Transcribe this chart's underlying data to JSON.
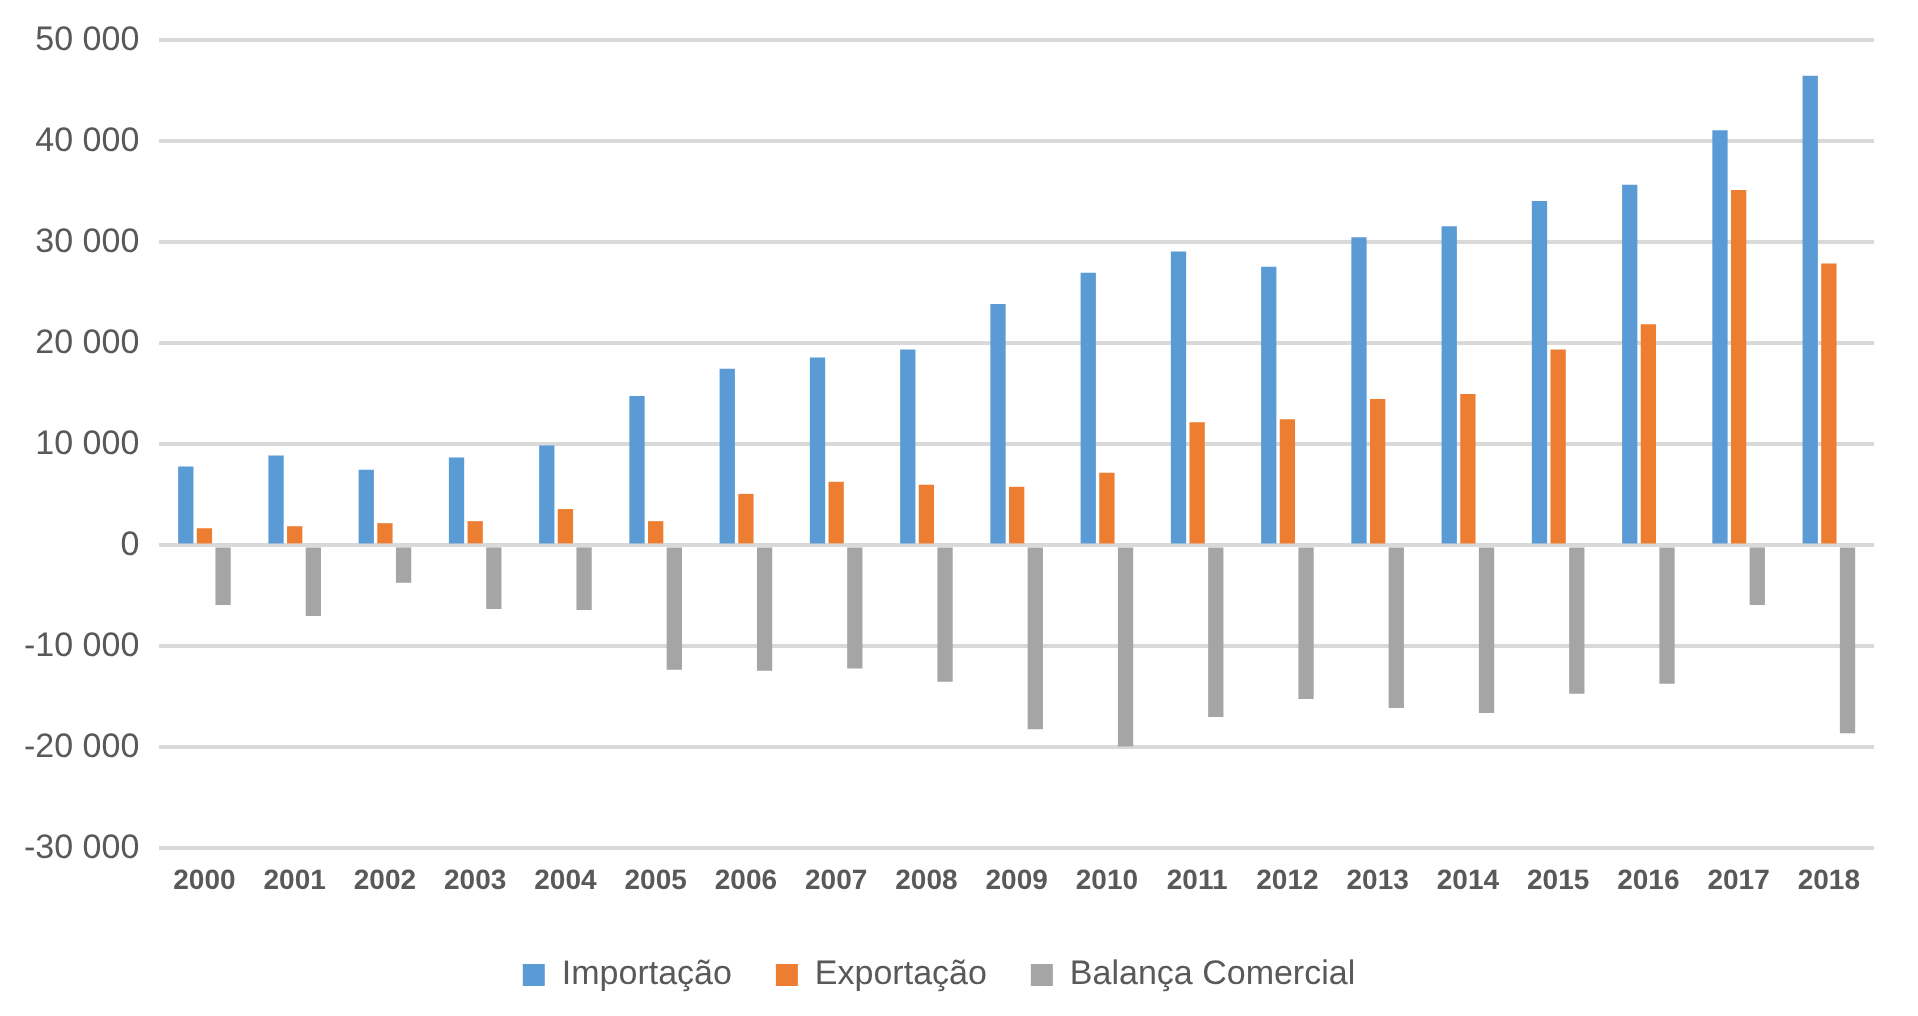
{
  "chart_data": {
    "type": "bar",
    "categories": [
      "2000",
      "2001",
      "2002",
      "2003",
      "2004",
      "2005",
      "2006",
      "2007",
      "2008",
      "2009",
      "2010",
      "2011",
      "2012",
      "2013",
      "2014",
      "2015",
      "2016",
      "2017",
      "2018"
    ],
    "series": [
      {
        "name": "Importação",
        "color": "#5b9bd5",
        "values": [
          7800,
          8900,
          7500,
          8700,
          9900,
          14800,
          17500,
          18600,
          19400,
          23900,
          27000,
          29100,
          27600,
          30500,
          31600,
          34100,
          35700,
          41100,
          46500
        ]
      },
      {
        "name": "Exportação",
        "color": "#ed7d31",
        "values": [
          1700,
          1900,
          2200,
          2400,
          3600,
          2400,
          5100,
          6300,
          6000,
          5800,
          7200,
          12200,
          12500,
          14500,
          15000,
          19400,
          21900,
          35200,
          27900
        ]
      },
      {
        "name": "Balança Comercial",
        "color": "#a5a5a5",
        "values": [
          -5900,
          -7000,
          -3700,
          -6300,
          -6400,
          -12300,
          -12400,
          -12200,
          -13500,
          -18200,
          -19900,
          -17000,
          -15200,
          -16100,
          -16600,
          -14700,
          -13700,
          -5900,
          -18600
        ]
      }
    ],
    "ylim": [
      -30000,
      50000
    ],
    "yticks": [
      {
        "value": -30000,
        "label": "-30 000"
      },
      {
        "value": -20000,
        "label": "-20 000"
      },
      {
        "value": -10000,
        "label": "-10 000"
      },
      {
        "value": 0,
        "label": "0"
      },
      {
        "value": 10000,
        "label": "10 000"
      },
      {
        "value": 20000,
        "label": "20 000"
      },
      {
        "value": 30000,
        "label": "30 000"
      },
      {
        "value": 40000,
        "label": "40 000"
      },
      {
        "value": 50000,
        "label": "50 000"
      }
    ],
    "grid": "y",
    "legend": "bottom"
  }
}
